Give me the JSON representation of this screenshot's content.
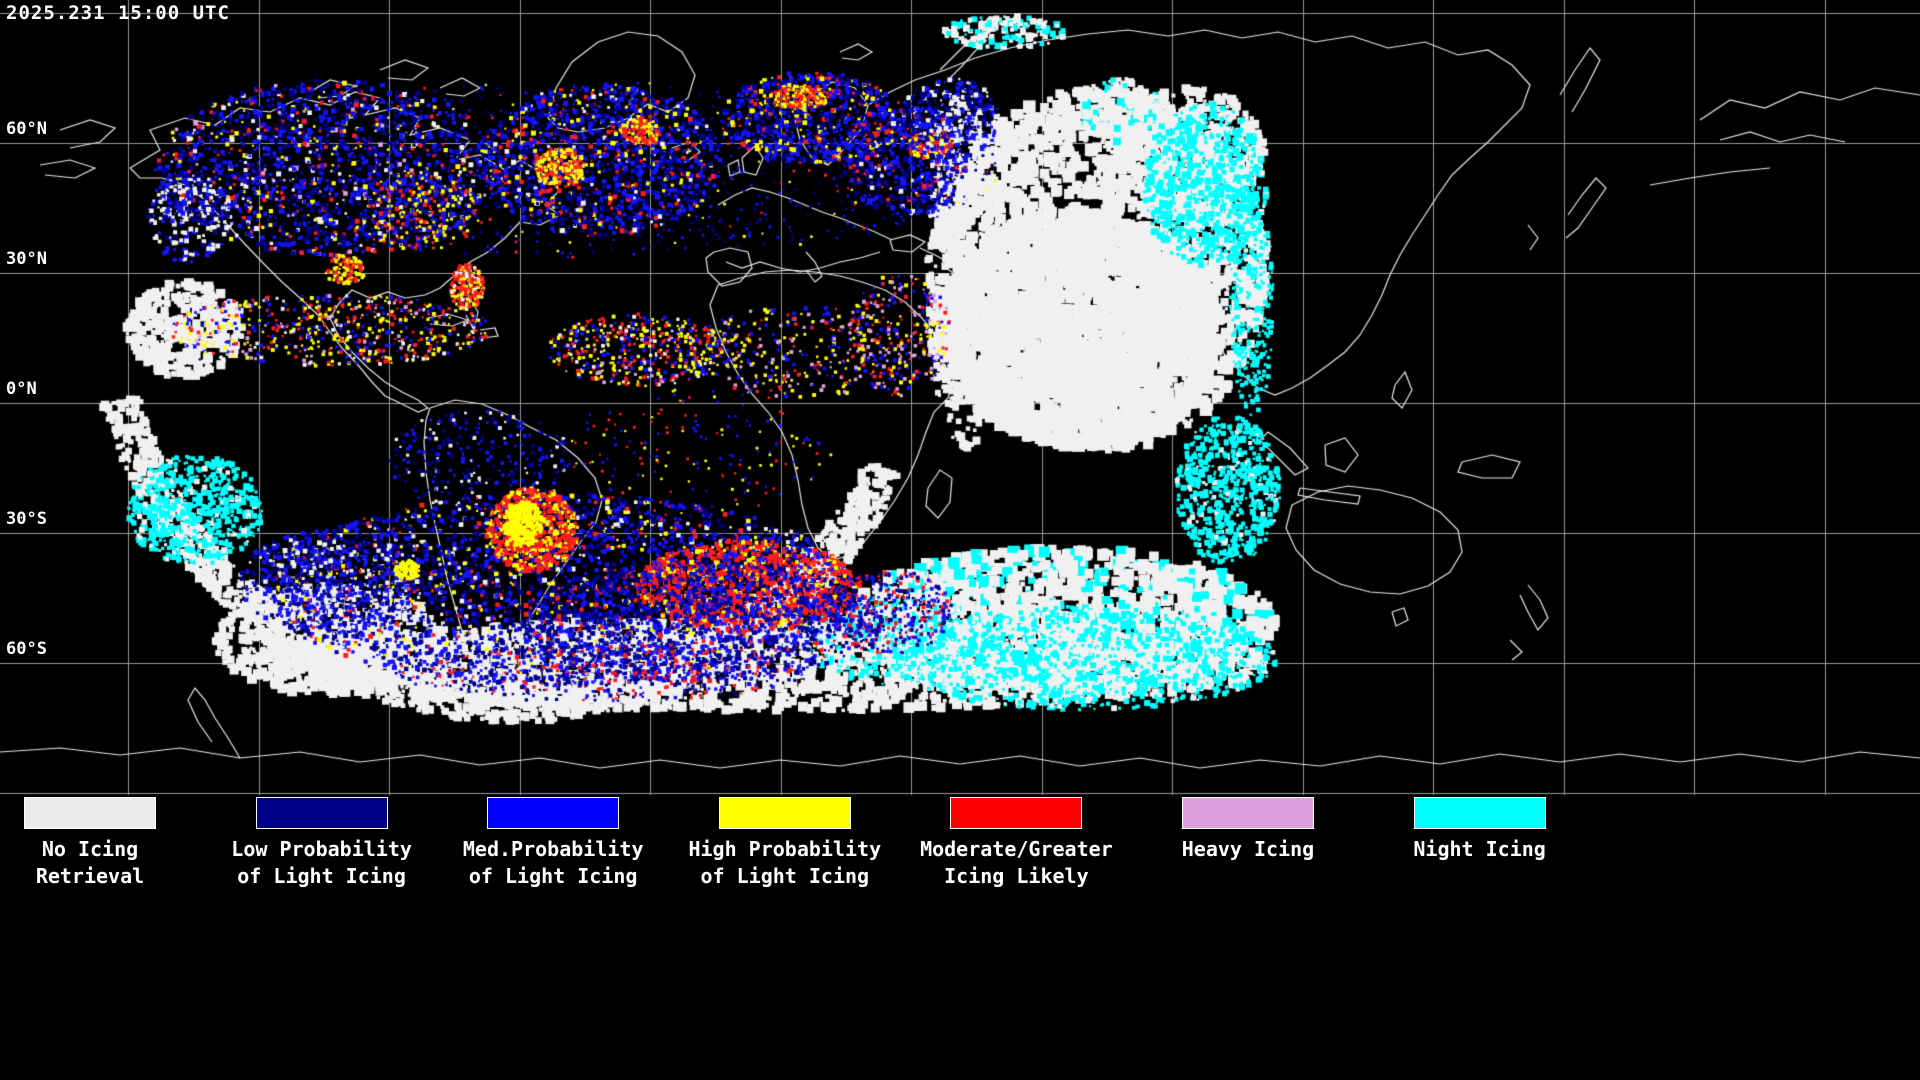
{
  "header": {
    "timestamp": "2025.231 15:00 UTC"
  },
  "map": {
    "background": "#000000",
    "grid_color": "#9a9a9a",
    "coastline_color": "#e8e8e8",
    "lat_labels": [
      {
        "label": "60°N",
        "lat": 60
      },
      {
        "label": "30°N",
        "lat": 30
      },
      {
        "label": "0°N",
        "lat": 0
      },
      {
        "label": "30°S",
        "lat": -30
      },
      {
        "label": "60°S",
        "lat": -60
      }
    ],
    "grid_lats": [
      90,
      60,
      30,
      0,
      -30,
      -60,
      -90
    ],
    "palette": {
      "white": "#f0f0f0",
      "navy": "#000090",
      "blue": "#1414ff",
      "yellow": "#ffff00",
      "red": "#ff1e1e",
      "plum": "#dda0dd",
      "cyan": "#00ffff"
    },
    "overlay_regions": [
      {
        "name": "indian-ocean-cloud-mass",
        "shape": [
          1100,
          270,
          168,
          182
        ],
        "colors": {
          "white": 1
        },
        "n": 2400,
        "s": [
          3,
          13
        ]
      },
      {
        "name": "indian-ocean-cloud-core",
        "shape": [
          1080,
          330,
          140,
          118
        ],
        "colors": {
          "white": 1
        },
        "n": 1500,
        "s": [
          4,
          16
        ]
      },
      {
        "name": "indian-ocean-west-edge",
        "shape": [
          965,
          270,
          38,
          180
        ],
        "colors": {
          "white": 1
        },
        "n": 500,
        "s": [
          3,
          9
        ]
      },
      {
        "name": "arabian-sea-clouds",
        "shape": [
          1190,
          150,
          75,
          62
        ],
        "colors": {
          "white": 1
        },
        "n": 520,
        "s": [
          3,
          10
        ]
      },
      {
        "name": "southern-ocean-cloud-band",
        "shape": [
          760,
          665,
          515,
          46
        ],
        "colors": {
          "white": 1
        },
        "n": 2400,
        "s": [
          3,
          11
        ]
      },
      {
        "name": "south-indian-cloud-mass",
        "shape": [
          1060,
          620,
          215,
          72
        ],
        "colors": {
          "white": 0.8,
          "cyan": 0.2
        },
        "n": 1500,
        "s": [
          4,
          13
        ]
      },
      {
        "name": "southwest-atlantic-clouds",
        "shape": [
          330,
          640,
          115,
          55
        ],
        "colors": {
          "white": 1
        },
        "n": 650,
        "s": [
          3,
          10
        ]
      },
      {
        "name": "terminator-arc",
        "arc": [
          515,
          295,
          408,
          25,
          165,
          38
        ],
        "colors": {
          "white": 1
        },
        "n": 1600,
        "s": [
          3,
          9
        ]
      },
      {
        "name": "south-pacific-left-clouds",
        "shape": [
          185,
          330,
          58,
          48
        ],
        "colors": {
          "white": 1
        },
        "n": 380,
        "s": [
          3,
          10
        ]
      },
      {
        "name": "arctic-cloud-streak",
        "shape": [
          1005,
          32,
          62,
          16
        ],
        "colors": {
          "white": 0.7,
          "cyan": 0.3
        },
        "n": 170,
        "s": [
          2,
          7
        ]
      },
      {
        "name": "caspian-cloud-patch",
        "shape": [
          1120,
          110,
          42,
          32
        ],
        "colors": {
          "white": 0.8,
          "cyan": 0.2
        },
        "n": 200,
        "s": [
          3,
          8
        ]
      },
      {
        "name": "night-icing-east-north",
        "shape": [
          1205,
          185,
          62,
          82
        ],
        "colors": {
          "cyan": 0.85,
          "white": 0.15
        },
        "n": 760,
        "s": [
          2,
          7
        ]
      },
      {
        "name": "night-icing-east-mid",
        "shape": [
          1228,
          490,
          52,
          75
        ],
        "colors": {
          "cyan": 0.9,
          "white": 0.1
        },
        "n": 650,
        "s": [
          2,
          6
        ]
      },
      {
        "name": "night-icing-east-inner",
        "shape": [
          1252,
          300,
          22,
          115
        ],
        "colors": {
          "cyan": 1
        },
        "n": 300,
        "s": [
          2,
          5
        ]
      },
      {
        "name": "night-icing-southern-ocean",
        "shape": [
          1085,
          658,
          195,
          52
        ],
        "colors": {
          "cyan": 0.8,
          "white": 0.2
        },
        "n": 1100,
        "s": [
          2,
          6
        ]
      },
      {
        "name": "night-icing-south-mid",
        "shape": [
          900,
          640,
          95,
          45
        ],
        "colors": {
          "cyan": 0.6,
          "white": 0.4
        },
        "n": 420,
        "s": [
          2,
          6
        ]
      },
      {
        "name": "night-icing-left-patch",
        "shape": [
          195,
          510,
          68,
          55
        ],
        "colors": {
          "cyan": 0.85,
          "white": 0.15
        },
        "n": 620,
        "s": [
          2,
          6
        ]
      },
      {
        "name": "northern-band-backdrop",
        "shape": [
          580,
          170,
          425,
          88
        ],
        "colors": {
          "navy": 0.5,
          "blue": 0.34,
          "red": 0.08,
          "yellow": 0.08
        },
        "n": 950,
        "s": [
          2,
          3
        ]
      },
      {
        "name": "north-america-icing",
        "shape": [
          330,
          168,
          172,
          88
        ],
        "colors": {
          "blue": 0.42,
          "navy": 0.3,
          "white": 0.08,
          "red": 0.08,
          "yellow": 0.08,
          "plum": 0.04
        },
        "n": 1650,
        "s": [
          2,
          5
        ]
      },
      {
        "name": "north-atlantic-icing",
        "shape": [
          600,
          160,
          122,
          76
        ],
        "colors": {
          "blue": 0.45,
          "navy": 0.3,
          "yellow": 0.1,
          "red": 0.1,
          "white": 0.05
        },
        "n": 1350,
        "s": [
          2,
          5
        ]
      },
      {
        "name": "greenland-sea-red-cluster",
        "shape": [
          560,
          168,
          26,
          20
        ],
        "colors": {
          "red": 0.55,
          "yellow": 0.45
        },
        "n": 260,
        "s": [
          2,
          4
        ]
      },
      {
        "name": "labrador-red-cluster",
        "shape": [
          640,
          132,
          20,
          14
        ],
        "colors": {
          "red": 0.6,
          "yellow": 0.4
        },
        "n": 150,
        "s": [
          2,
          4
        ]
      },
      {
        "name": "europe-icing",
        "shape": [
          812,
          118,
          92,
          46
        ],
        "colors": {
          "blue": 0.45,
          "navy": 0.3,
          "red": 0.12,
          "yellow": 0.13
        },
        "n": 800,
        "s": [
          2,
          5
        ]
      },
      {
        "name": "scandinavia-red-cluster",
        "shape": [
          800,
          97,
          30,
          13
        ],
        "colors": {
          "red": 0.55,
          "yellow": 0.45
        },
        "n": 160,
        "s": [
          2,
          4
        ]
      },
      {
        "name": "russia-icing",
        "shape": [
          905,
          160,
          62,
          58
        ],
        "colors": {
          "blue": 0.5,
          "navy": 0.3,
          "red": 0.1,
          "white": 0.1
        },
        "n": 520,
        "s": [
          2,
          5
        ]
      },
      {
        "name": "ural-red-cluster",
        "shape": [
          930,
          145,
          22,
          14
        ],
        "colors": {
          "red": 0.6,
          "yellow": 0.4
        },
        "n": 130,
        "s": [
          2,
          4
        ]
      },
      {
        "name": "central-asia-icing",
        "shape": [
          950,
          120,
          50,
          42
        ],
        "colors": {
          "blue": 0.4,
          "navy": 0.3,
          "white": 0.3
        },
        "n": 300,
        "s": [
          2,
          5
        ]
      },
      {
        "name": "plains-warm-cluster",
        "shape": [
          420,
          212,
          60,
          40
        ],
        "colors": {
          "yellow": 0.4,
          "red": 0.3,
          "blue": 0.3
        },
        "n": 260,
        "s": [
          2,
          4
        ]
      },
      {
        "name": "west-coast-clouds",
        "shape": [
          190,
          218,
          42,
          46
        ],
        "colors": {
          "white": 0.5,
          "blue": 0.3,
          "navy": 0.2
        },
        "n": 260,
        "s": [
          2,
          5
        ]
      },
      {
        "name": "gulf-warm-cluster",
        "shape": [
          345,
          270,
          20,
          15
        ],
        "colors": {
          "yellow": 0.55,
          "red": 0.45
        },
        "n": 120,
        "s": [
          2,
          4
        ]
      },
      {
        "name": "hurricane-swirl",
        "shape": [
          467,
          287,
          17,
          23
        ],
        "colors": {
          "red": 0.5,
          "yellow": 0.3,
          "white": 0.2
        },
        "n": 240,
        "s": [
          2,
          4
        ]
      },
      {
        "name": "caribbean-icing-band",
        "shape": [
          330,
          330,
          162,
          36
        ],
        "colors": {
          "yellow": 0.28,
          "red": 0.24,
          "blue": 0.26,
          "plum": 0.1,
          "white": 0.12
        },
        "n": 620,
        "s": [
          2,
          4
        ]
      },
      {
        "name": "atlantic-itcz-band",
        "shape": [
          640,
          350,
          92,
          36
        ],
        "colors": {
          "yellow": 0.3,
          "red": 0.25,
          "blue": 0.25,
          "plum": 0.08,
          "white": 0.12
        },
        "n": 470,
        "s": [
          2,
          4
        ]
      },
      {
        "name": "africa-equator-speckle",
        "shape": [
          800,
          352,
          112,
          46
        ],
        "colors": {
          "yellow": 0.35,
          "plum": 0.2,
          "red": 0.2,
          "blue": 0.25
        },
        "n": 330,
        "s": [
          2,
          4
        ]
      },
      {
        "name": "east-africa-speckle",
        "shape": [
          900,
          335,
          52,
          62
        ],
        "colors": {
          "plum": 0.3,
          "red": 0.25,
          "yellow": 0.2,
          "blue": 0.25
        },
        "n": 260,
        "s": [
          2,
          4
        ]
      },
      {
        "name": "central-atlantic-sparse",
        "shape": [
          700,
          450,
          135,
          62
        ],
        "colors": {
          "blue": 0.4,
          "yellow": 0.3,
          "red": 0.3
        },
        "n": 170,
        "s": [
          2,
          3
        ]
      },
      {
        "name": "andes-sparse",
        "shape": [
          480,
          460,
          92,
          52
        ],
        "colors": {
          "blue": 0.45,
          "navy": 0.35,
          "white": 0.2
        },
        "n": 300,
        "s": [
          2,
          4
        ]
      },
      {
        "name": "southern-storm-main",
        "shape": [
          560,
          590,
          295,
          96
        ],
        "colors": {
          "blue": 0.4,
          "navy": 0.35,
          "white": 0.1,
          "red": 0.08,
          "yellow": 0.07
        },
        "n": 3200,
        "s": [
          2,
          5
        ]
      },
      {
        "name": "southern-storm-west",
        "shape": [
          330,
          582,
          92,
          52
        ],
        "colors": {
          "blue": 0.4,
          "navy": 0.35,
          "white": 0.25
        },
        "n": 620,
        "s": [
          2,
          5
        ]
      },
      {
        "name": "argentina-red-patch",
        "shape": [
          532,
          530,
          46,
          42
        ],
        "colors": {
          "red": 0.7,
          "yellow": 0.3
        },
        "n": 700,
        "s": [
          2,
          5
        ]
      },
      {
        "name": "argentina-yellow-core",
        "shape": [
          523,
          524,
          19,
          23
        ],
        "colors": {
          "yellow": 1
        },
        "n": 260,
        "s": [
          2,
          5
        ]
      },
      {
        "name": "south-atlantic-red-swath",
        "shape": [
          748,
          586,
          112,
          46
        ],
        "colors": {
          "red": 0.62,
          "blue": 0.2,
          "yellow": 0.18
        },
        "n": 1300,
        "s": [
          2,
          5
        ]
      },
      {
        "name": "south-atlantic-navy-mass",
        "shape": [
          700,
          622,
          182,
          60
        ],
        "colors": {
          "navy": 0.55,
          "blue": 0.3,
          "red": 0.15
        },
        "n": 1150,
        "s": [
          2,
          5
        ]
      },
      {
        "name": "south-atlantic-east-speckle",
        "shape": [
          890,
          612,
          62,
          42
        ],
        "colors": {
          "red": 0.3,
          "navy": 0.4,
          "blue": 0.3
        },
        "n": 360,
        "s": [
          2,
          4
        ]
      },
      {
        "name": "yellow-spot-west",
        "shape": [
          408,
          570,
          13,
          9
        ],
        "colors": {
          "yellow": 1
        },
        "n": 90,
        "s": [
          2,
          4
        ]
      },
      {
        "name": "subantarctic-speckle",
        "shape": [
          600,
          672,
          205,
          30
        ],
        "colors": {
          "navy": 0.45,
          "blue": 0.3,
          "red": 0.25
        },
        "n": 480,
        "s": [
          2,
          4
        ]
      }
    ]
  },
  "legend": {
    "items": [
      {
        "name": "no-icing-retrieval",
        "color": "#ebebeb",
        "lines": [
          "No Icing",
          "Retrieval"
        ]
      },
      {
        "name": "low-probability-light-icing",
        "color": "#000087",
        "lines": [
          "Low Probability",
          "of Light Icing"
        ]
      },
      {
        "name": "med-probability-light-icing",
        "color": "#0000ff",
        "lines": [
          "Med.Probability",
          "of Light Icing"
        ]
      },
      {
        "name": "high-probability-light-icing",
        "color": "#ffff00",
        "lines": [
          "High Probability",
          "of Light Icing"
        ]
      },
      {
        "name": "moderate-greater-icing-likely",
        "color": "#ff0000",
        "lines": [
          "Moderate/Greater",
          "Icing Likely"
        ]
      },
      {
        "name": "heavy-icing",
        "color": "#dda0dd",
        "lines": [
          "Heavy Icing"
        ]
      },
      {
        "name": "night-icing",
        "color": "#00ffff",
        "lines": [
          "Night Icing"
        ]
      }
    ]
  }
}
